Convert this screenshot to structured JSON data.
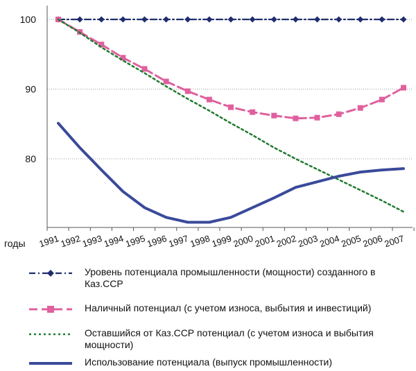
{
  "chart_data": {
    "type": "line",
    "xlabel": "годы",
    "ylabel": "",
    "ylim": [
      70,
      100
    ],
    "yticks": [
      80,
      90,
      100
    ],
    "grid": "horizontal dotted",
    "legend_placement": "bottom",
    "categories": [
      "1991",
      "1992",
      "1993",
      "1994",
      "1995",
      "1996",
      "1997",
      "1998",
      "1999",
      "2000",
      "2001",
      "2002",
      "2003",
      "2004",
      "2005",
      "2006",
      "2007"
    ],
    "series": [
      {
        "name": "Уровень потенциала промышленности (мощности) созданного в Каз.ССР",
        "key": "level",
        "color": "#1f2d6e",
        "style": "dash-dot with diamond markers",
        "values": [
          100,
          100,
          100,
          100,
          100,
          100,
          100,
          100,
          100,
          100,
          100,
          100,
          100,
          100,
          100,
          100,
          100
        ]
      },
      {
        "name": "Наличный потенциал (с учетом износа, выбытия и инвестиций)",
        "key": "available",
        "color": "#e0609e",
        "style": "dashed with square markers",
        "values": [
          100,
          98.2,
          96.4,
          94.5,
          92.9,
          91.1,
          89.7,
          88.5,
          87.4,
          86.7,
          86.2,
          85.8,
          85.9,
          86.4,
          87.3,
          88.5,
          90.2
        ]
      },
      {
        "name": "Оставшийся от Каз.ССР потенциал (с учетом износа и выбытия мощности)",
        "key": "remaining",
        "color": "#1f7a2e",
        "style": "dotted",
        "values": [
          100,
          98.1,
          96.0,
          94.1,
          92.3,
          90.4,
          88.6,
          86.9,
          85.1,
          83.4,
          81.6,
          80.0,
          78.5,
          77.0,
          75.5,
          74.0,
          72.4
        ]
      },
      {
        "name": "Использование потенциала (выпуск промышленности)",
        "key": "output",
        "color": "#3a4a9a",
        "style": "solid thick",
        "values": [
          85.1,
          81.6,
          78.4,
          75.3,
          73.0,
          71.6,
          70.9,
          70.9,
          71.6,
          73.0,
          74.4,
          75.9,
          76.7,
          77.5,
          78.1,
          78.4,
          78.6
        ]
      }
    ]
  }
}
